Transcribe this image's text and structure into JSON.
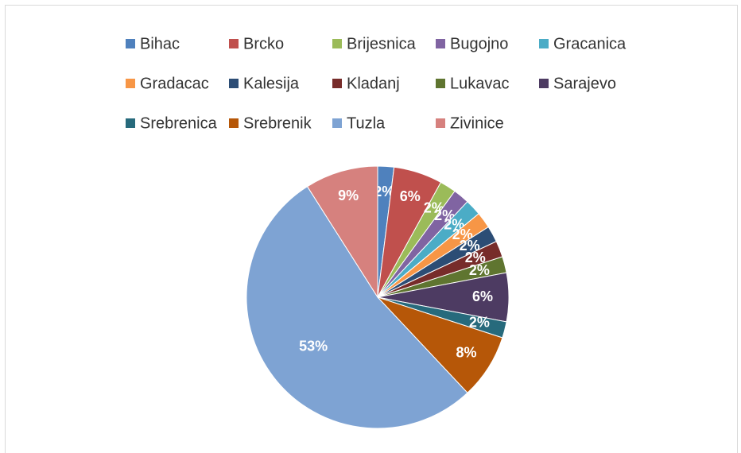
{
  "chart_data": {
    "type": "pie",
    "categories": [
      "Bihac",
      "Brcko",
      "Brijesnica",
      "Bugojno",
      "Gracanica",
      "Gradacac",
      "Kalesija",
      "Kladanj",
      "Lukavac",
      "Sarajevo",
      "Srebrenica",
      "Srebrenik",
      "Tuzla",
      "Zivinice"
    ],
    "values": [
      2,
      6,
      2,
      2,
      2,
      2,
      2,
      2,
      2,
      6,
      2,
      8,
      53,
      9
    ],
    "value_labels": [
      "2%",
      "6%",
      "2%",
      "2%",
      "2%",
      "2%",
      "2%",
      "2%",
      "2%",
      "6%",
      "2%",
      "8%",
      "53%",
      "9%"
    ],
    "colors": [
      "#4f81bd",
      "#c0504d",
      "#9bbb59",
      "#8064a2",
      "#4bacc6",
      "#f79646",
      "#2c4d75",
      "#772c2a",
      "#5f7530",
      "#4d3b62",
      "#276a7c",
      "#b65708",
      "#7ea3d3",
      "#d6817e"
    ],
    "legend": "top"
  }
}
